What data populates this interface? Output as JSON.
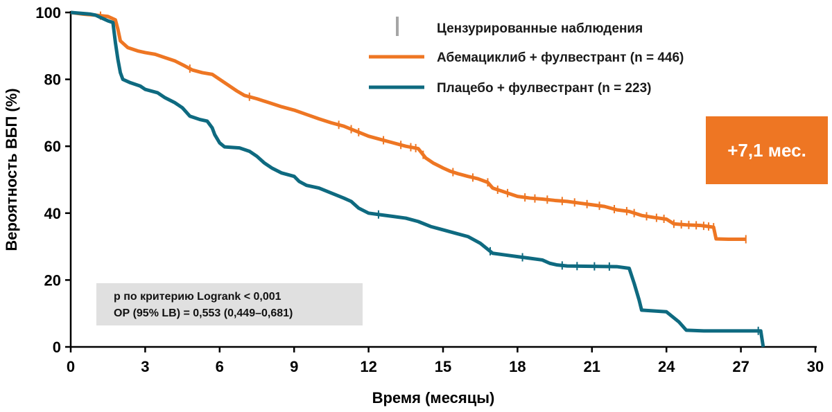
{
  "chart_data": {
    "type": "line",
    "title": "",
    "xlabel": "Время (месяцы)",
    "ylabel": "Вероятность ВБП (%)",
    "xlim": [
      0,
      30
    ],
    "ylim": [
      0,
      100
    ],
    "x_ticks": [
      "0",
      "3",
      "6",
      "9",
      "12",
      "15",
      "18",
      "21",
      "24",
      "27",
      "30"
    ],
    "y_ticks": [
      "0",
      "20",
      "40",
      "60",
      "80",
      "100"
    ],
    "grid": false,
    "legend": {
      "placement": "top-right",
      "censor_label": "Цензурированные наблюдения",
      "censor_color": "#a6a6a6"
    },
    "series": [
      {
        "name": "Абемациклиб + фулвестрант (n = 446)",
        "color": "#ee7623",
        "points": [
          [
            0,
            100
          ],
          [
            0.5,
            99.5
          ],
          [
            1.0,
            99.2
          ],
          [
            1.5,
            98.8
          ],
          [
            1.8,
            97.8
          ],
          [
            1.9,
            95
          ],
          [
            2.0,
            91.5
          ],
          [
            2.3,
            89.5
          ],
          [
            2.7,
            88.5
          ],
          [
            3.0,
            88
          ],
          [
            3.4,
            87.5
          ],
          [
            3.8,
            86.5
          ],
          [
            4.2,
            85.5
          ],
          [
            4.6,
            84
          ],
          [
            4.9,
            82.8
          ],
          [
            5.3,
            82
          ],
          [
            5.7,
            81.5
          ],
          [
            6.0,
            80
          ],
          [
            6.3,
            78.5
          ],
          [
            6.7,
            76.5
          ],
          [
            7.0,
            75.2
          ],
          [
            7.5,
            74.2
          ],
          [
            8.0,
            73
          ],
          [
            8.5,
            71.8
          ],
          [
            9.0,
            70.8
          ],
          [
            9.5,
            69.5
          ],
          [
            10.0,
            68.2
          ],
          [
            10.5,
            67
          ],
          [
            11.0,
            66
          ],
          [
            11.5,
            64.5
          ],
          [
            12.0,
            63
          ],
          [
            12.5,
            62
          ],
          [
            13.0,
            61
          ],
          [
            13.5,
            60
          ],
          [
            14.0,
            59.3
          ],
          [
            14.3,
            56.5
          ],
          [
            14.6,
            55
          ],
          [
            15.0,
            53.5
          ],
          [
            15.3,
            52.5
          ],
          [
            15.6,
            51.8
          ],
          [
            16.0,
            51
          ],
          [
            16.4,
            50.3
          ],
          [
            16.8,
            49.2
          ],
          [
            17.0,
            47.5
          ],
          [
            17.4,
            46.5
          ],
          [
            17.8,
            45.5
          ],
          [
            18.0,
            45
          ],
          [
            18.5,
            44.5
          ],
          [
            19.0,
            44.2
          ],
          [
            19.5,
            43.8
          ],
          [
            20.0,
            43.5
          ],
          [
            20.5,
            43
          ],
          [
            21.0,
            42.5
          ],
          [
            21.5,
            42
          ],
          [
            22.0,
            41
          ],
          [
            22.5,
            40.5
          ],
          [
            23.0,
            39.3
          ],
          [
            23.5,
            38.7
          ],
          [
            24.0,
            38.2
          ],
          [
            24.3,
            36.8
          ],
          [
            24.8,
            36.5
          ],
          [
            25.4,
            36.3
          ],
          [
            25.9,
            35.8
          ],
          [
            26.0,
            32.3
          ],
          [
            26.5,
            32.2
          ],
          [
            27.2,
            32.2
          ]
        ],
        "censor_x": [
          1.2,
          4.8,
          7.2,
          10.8,
          11.3,
          11.6,
          12.6,
          13.3,
          13.7,
          13.9,
          14.2,
          15.4,
          16.2,
          16.8,
          17.2,
          17.6,
          18.3,
          18.7,
          19.2,
          19.8,
          20.3,
          20.8,
          21.3,
          21.9,
          22.4,
          22.7,
          23.2,
          23.6,
          23.9,
          24.3,
          24.6,
          24.9,
          25.2,
          25.5,
          25.7,
          25.9,
          27.2
        ]
      },
      {
        "name": "Плацебо + фулвестрант (n = 223)",
        "color": "#0e6a80",
        "points": [
          [
            0,
            100
          ],
          [
            0.8,
            99.5
          ],
          [
            1.0,
            99.2
          ],
          [
            1.2,
            98.5
          ],
          [
            1.5,
            97.5
          ],
          [
            1.7,
            97
          ],
          [
            1.8,
            91
          ],
          [
            1.9,
            86
          ],
          [
            2.0,
            82
          ],
          [
            2.1,
            80
          ],
          [
            2.4,
            79
          ],
          [
            2.8,
            78
          ],
          [
            3.0,
            77
          ],
          [
            3.5,
            76
          ],
          [
            3.8,
            74.5
          ],
          [
            4.2,
            73
          ],
          [
            4.5,
            71.5
          ],
          [
            4.8,
            69
          ],
          [
            5.2,
            68
          ],
          [
            5.5,
            67.5
          ],
          [
            5.7,
            65.5
          ],
          [
            5.8,
            63.5
          ],
          [
            6.0,
            61
          ],
          [
            6.2,
            59.8
          ],
          [
            6.8,
            59.5
          ],
          [
            7.2,
            58.5
          ],
          [
            7.5,
            57
          ],
          [
            7.8,
            55
          ],
          [
            8.1,
            53.5
          ],
          [
            8.5,
            52
          ],
          [
            9.0,
            51
          ],
          [
            9.2,
            49.5
          ],
          [
            9.5,
            48.3
          ],
          [
            10.0,
            47.5
          ],
          [
            10.5,
            46
          ],
          [
            11.0,
            44.5
          ],
          [
            11.3,
            43.5
          ],
          [
            11.6,
            41.5
          ],
          [
            12.0,
            40
          ],
          [
            12.5,
            39.5
          ],
          [
            13.0,
            39
          ],
          [
            13.5,
            38.5
          ],
          [
            14.0,
            37.5
          ],
          [
            14.5,
            36
          ],
          [
            15.0,
            35
          ],
          [
            15.5,
            34
          ],
          [
            16.0,
            33
          ],
          [
            16.5,
            31
          ],
          [
            17.0,
            28
          ],
          [
            17.5,
            27.5
          ],
          [
            18.0,
            27
          ],
          [
            18.5,
            26.5
          ],
          [
            19.0,
            26
          ],
          [
            19.3,
            25
          ],
          [
            19.6,
            24.5
          ],
          [
            20.0,
            24.2
          ],
          [
            21.0,
            24.1
          ],
          [
            22.0,
            24
          ],
          [
            22.5,
            23.5
          ],
          [
            22.7,
            19
          ],
          [
            22.9,
            14
          ],
          [
            23.0,
            11
          ],
          [
            24.0,
            10.5
          ],
          [
            24.5,
            7.5
          ],
          [
            24.8,
            5
          ],
          [
            25.5,
            4.8
          ],
          [
            27.8,
            4.8
          ],
          [
            27.9,
            0
          ]
        ],
        "censor_x": [
          12.4,
          16.9,
          18.2,
          19.8,
          20.4,
          21.1,
          21.7,
          27.7
        ]
      }
    ],
    "stats": {
      "line1": "p по критерию Logrank < 0,001",
      "line2": "ОР (95% LB) = 0,553 (0,449–0,681)"
    },
    "badge": {
      "text": "+7,1 мес.",
      "color": "#ee7623"
    }
  }
}
